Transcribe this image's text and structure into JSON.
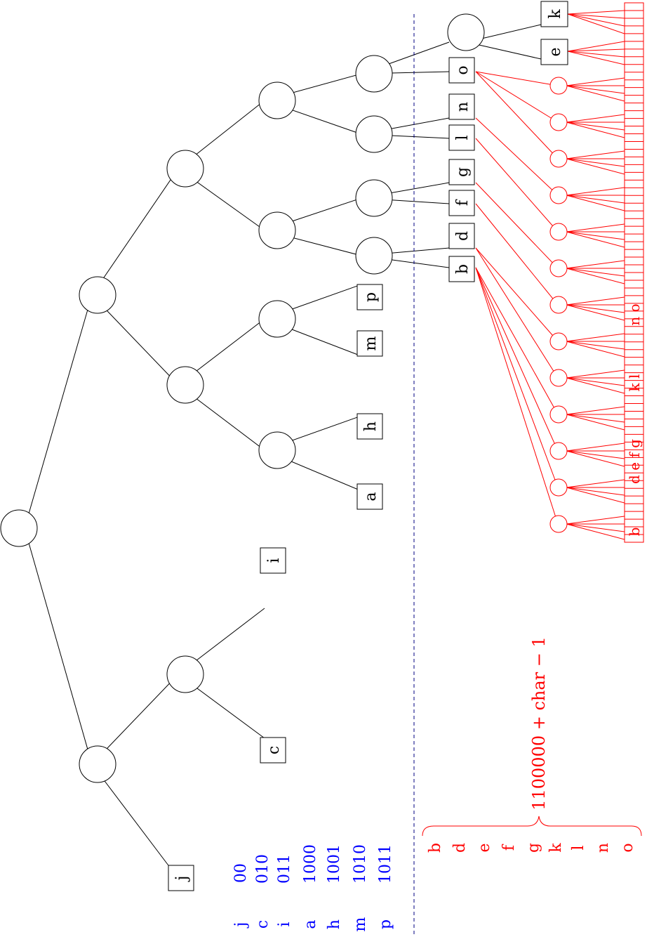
{
  "tree_leaves": {
    "j": "j",
    "c": "c",
    "i": "i",
    "a": "a",
    "h": "h",
    "m": "m",
    "p": "p",
    "b": "b",
    "d": "d",
    "f": "f",
    "g": "g",
    "l": "l",
    "n": "n",
    "o": "o",
    "e": "e",
    "k": "k"
  },
  "code_table": [
    {
      "char": "j",
      "code": "00"
    },
    {
      "char": "c",
      "code": "010"
    },
    {
      "char": "i",
      "code": "011"
    },
    {
      "char": "a",
      "code": "1000"
    },
    {
      "char": "h",
      "code": "1001"
    },
    {
      "char": "m",
      "code": "1010"
    },
    {
      "char": "p",
      "code": "1011"
    }
  ],
  "red_chars": [
    "b",
    "d",
    "e",
    "f",
    "g",
    "k",
    "l",
    "n",
    "o"
  ],
  "formula": "1100000 + char − 1",
  "array_labels": [
    "b",
    "d e f g",
    "k l",
    "n o"
  ],
  "colors": {
    "tree": "#000000",
    "code": "#0000ff",
    "table": "#ff0000",
    "divider": "#000080"
  }
}
